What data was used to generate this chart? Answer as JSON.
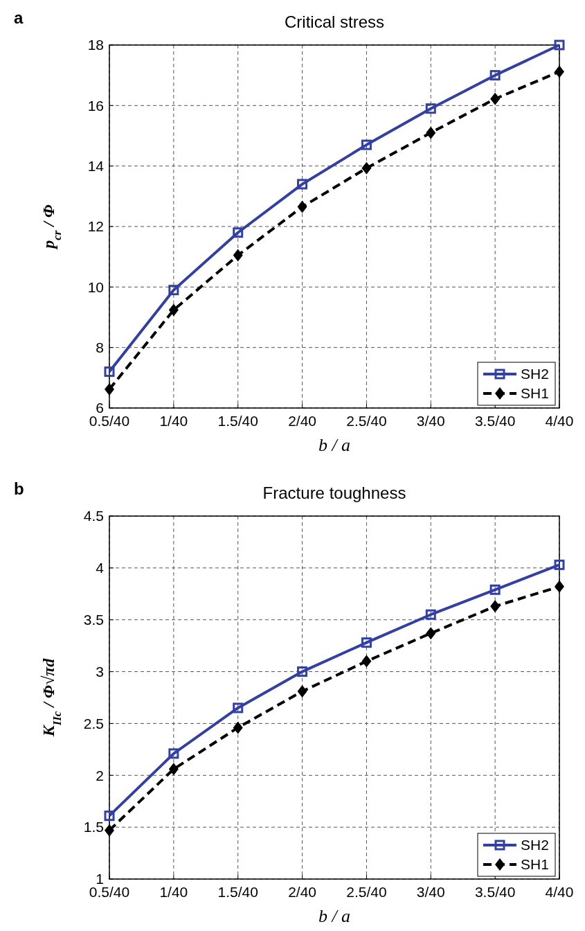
{
  "chart_data": [
    {
      "type": "line",
      "title": "Critical stress",
      "xlabel": "b / a",
      "ylabel": "p$_{cr}$ / Φ",
      "annotations": [
        "a"
      ],
      "categories": [
        "0.5/40",
        "1/40",
        "1.5/40",
        "2/40",
        "2.5/40",
        "3/40",
        "3.5/40",
        "4/40"
      ],
      "series": [
        {
          "name": "SH2",
          "color": "#3340a0",
          "marker": "square",
          "line_style": "solid",
          "values": [
            7.2,
            9.9,
            11.8,
            13.4,
            14.7,
            15.9,
            17.0,
            18.0
          ]
        },
        {
          "name": "SH1",
          "color": "#000000",
          "marker": "diamond",
          "line_style": "dashed",
          "values": [
            6.62,
            9.24,
            11.05,
            12.65,
            13.93,
            15.1,
            16.22,
            17.12
          ]
        }
      ],
      "ylim": [
        6,
        18
      ],
      "yticks": [
        6,
        8,
        10,
        12,
        14,
        16,
        18
      ],
      "grid": true,
      "legend": "bottom right"
    },
    {
      "type": "line",
      "title": "Fracture toughness",
      "xlabel": "b / a",
      "ylabel": "K$_{IIc}$ / Φ√πd",
      "annotations": [
        "b"
      ],
      "categories": [
        "0.5/40",
        "1/40",
        "1.5/40",
        "2/40",
        "2.5/40",
        "3/40",
        "3.5/40",
        "4/40"
      ],
      "series": [
        {
          "name": "SH2",
          "color": "#3340a0",
          "marker": "square",
          "line_style": "solid",
          "values": [
            1.61,
            2.21,
            2.65,
            3.0,
            3.28,
            3.55,
            3.79,
            4.03
          ]
        },
        {
          "name": "SH1",
          "color": "#000000",
          "marker": "diamond",
          "line_style": "dashed",
          "values": [
            1.47,
            2.06,
            2.46,
            2.81,
            3.1,
            3.37,
            3.63,
            3.82
          ]
        }
      ],
      "ylim": [
        1,
        4.5
      ],
      "yticks": [
        1,
        1.5,
        2,
        2.5,
        3,
        3.5,
        4,
        4.5
      ],
      "grid": true,
      "legend": "bottom right"
    }
  ]
}
